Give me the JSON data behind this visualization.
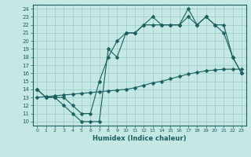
{
  "xlabel": "Humidex (Indice chaleur)",
  "bg_color": "#c5e8e5",
  "grid_color": "#9dcece",
  "line_color": "#1a6060",
  "xlim": [
    -0.5,
    23.5
  ],
  "ylim": [
    9.5,
    24.5
  ],
  "xticks": [
    0,
    1,
    2,
    3,
    4,
    5,
    6,
    7,
    8,
    9,
    10,
    11,
    12,
    13,
    14,
    15,
    16,
    17,
    18,
    19,
    20,
    21,
    22,
    23
  ],
  "yticks": [
    10,
    11,
    12,
    13,
    14,
    15,
    16,
    17,
    18,
    19,
    20,
    21,
    22,
    23,
    24
  ],
  "line1_x": [
    0,
    1,
    2,
    3,
    4,
    5,
    6,
    7,
    8,
    9,
    10,
    11,
    12,
    13,
    14,
    15,
    16,
    17,
    18,
    19,
    20,
    21,
    22,
    23
  ],
  "line1_y": [
    14,
    13,
    13,
    12,
    11,
    10,
    10,
    10,
    19,
    18,
    21,
    21,
    22,
    23,
    22,
    22,
    22,
    24,
    22,
    23,
    22,
    21,
    18,
    16
  ],
  "line2_x": [
    0,
    1,
    2,
    3,
    4,
    5,
    6,
    7,
    8,
    9,
    10,
    11,
    12,
    13,
    14,
    15,
    16,
    17,
    18,
    19,
    20,
    21,
    22,
    23
  ],
  "line2_y": [
    14,
    13,
    13,
    13,
    12,
    11,
    11,
    15,
    18,
    20,
    21,
    21,
    22,
    22,
    22,
    22,
    22,
    23,
    22,
    23,
    22,
    22,
    18,
    16
  ],
  "line3_x": [
    0,
    1,
    2,
    3,
    4,
    5,
    6,
    7,
    8,
    9,
    10,
    11,
    12,
    13,
    14,
    15,
    16,
    17,
    18,
    19,
    20,
    21,
    22,
    23
  ],
  "line3_y": [
    13.0,
    13.1,
    13.2,
    13.3,
    13.4,
    13.5,
    13.6,
    13.7,
    13.8,
    13.9,
    14.0,
    14.2,
    14.5,
    14.8,
    15.0,
    15.3,
    15.6,
    15.9,
    16.1,
    16.3,
    16.4,
    16.5,
    16.5,
    16.5
  ]
}
